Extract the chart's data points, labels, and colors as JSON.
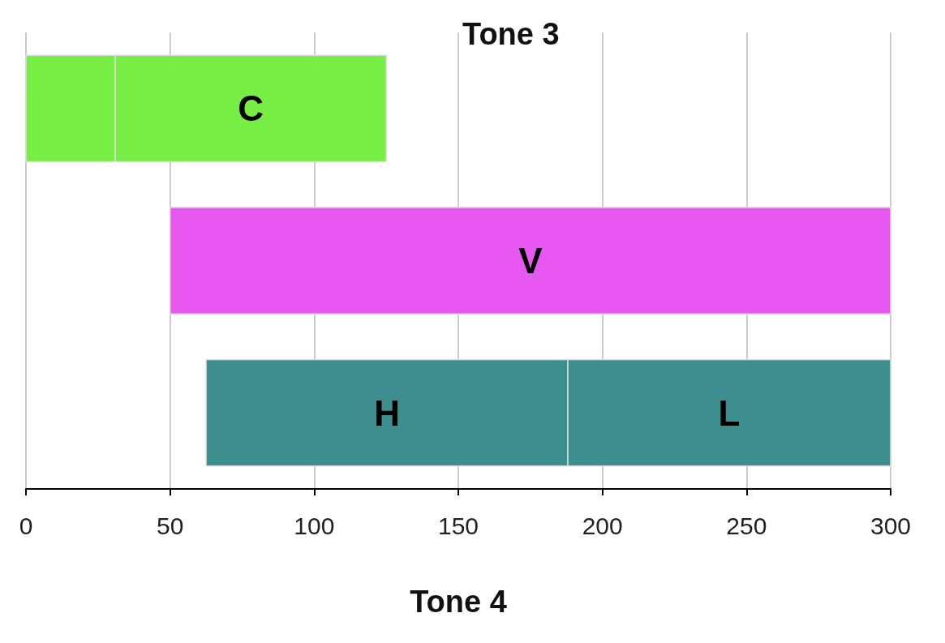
{
  "chart_data": {
    "type": "bar",
    "orientation": "horizontal",
    "title": "Tone 3",
    "xlabel": "Tone 4",
    "categories": [
      null,
      null,
      null
    ],
    "series": [
      {
        "colors": [
          "#77ee44",
          "#e658f0",
          "#3d8f8f"
        ],
        "values": [
          31,
          250,
          125.5
        ],
        "base": [
          0,
          50,
          62.5
        ],
        "value_labels": [
          null,
          "V",
          "H"
        ]
      },
      {
        "colors": [
          "#77ee44",
          null,
          "#3d8f8f"
        ],
        "values": [
          94,
          null,
          112
        ],
        "base": [
          31,
          null,
          188
        ],
        "value_labels": [
          "C",
          null,
          "L"
        ]
      }
    ],
    "xlim": [
      0,
      300
    ],
    "xticks": [
      0,
      50,
      100,
      150,
      200,
      250,
      300
    ],
    "grid": "x"
  }
}
